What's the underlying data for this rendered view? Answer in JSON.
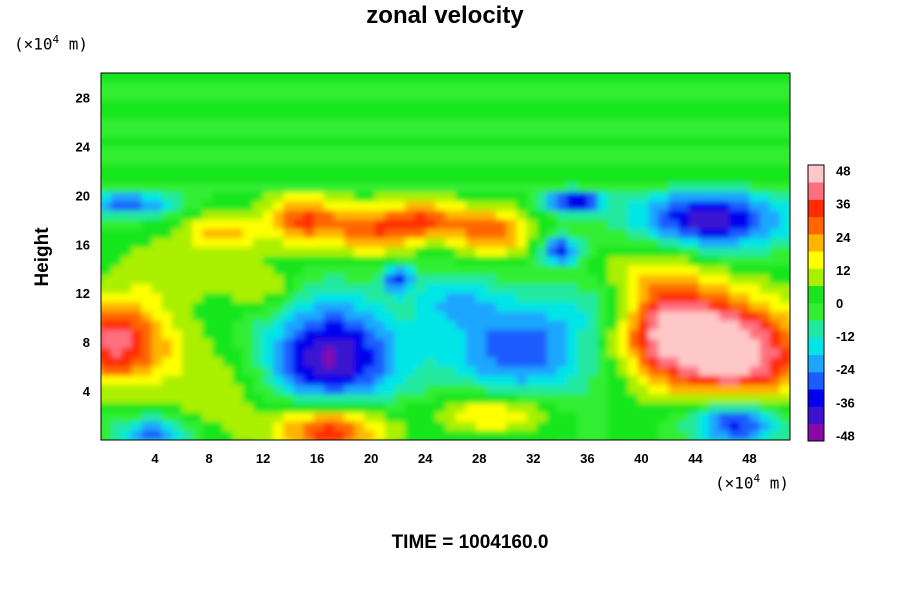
{
  "title": "zonal velocity",
  "footer": "TIME = 1004160.0",
  "chart_data": {
    "type": "heatmap",
    "title": "zonal velocity",
    "xlabel": "",
    "ylabel": "Height",
    "x_unit_label": "(×10",
    "x_unit_exp": "4",
    "x_unit_suffix": " m)",
    "y_unit_label": "(×10",
    "y_unit_exp": "4",
    "y_unit_suffix": " m)",
    "xlim": [
      0,
      51
    ],
    "ylim": [
      0,
      30
    ],
    "x_ticks": [
      4,
      8,
      12,
      16,
      20,
      24,
      28,
      32,
      36,
      40,
      44,
      48
    ],
    "y_ticks": [
      4,
      8,
      12,
      16,
      20,
      24,
      28
    ],
    "colorbar": {
      "range": [
        -50,
        50
      ],
      "ticks": [
        48,
        36,
        24,
        12,
        0,
        -12,
        -24,
        -36,
        -48
      ],
      "colors": [
        "#8a0aa8",
        "#3a12d0",
        "#0000ee",
        "#1a5cff",
        "#1ea6ff",
        "#00e6e6",
        "#20e8a0",
        "#33ee33",
        "#19e61e",
        "#aaf000",
        "#ffff00",
        "#ffb400",
        "#ff6600",
        "#ff2a00",
        "#ff6f7f",
        "#ffc8c8"
      ]
    },
    "features": [
      {
        "x": 17,
        "y": 6.5,
        "value": -45,
        "sx": 3.5,
        "sy": 3.5
      },
      {
        "x": 31,
        "y": 7.5,
        "value": -30,
        "sx": 4,
        "sy": 3
      },
      {
        "x": 47,
        "y": 7,
        "value": 48,
        "sx": 4,
        "sy": 3.2
      },
      {
        "x": 42,
        "y": 9,
        "value": 35,
        "sx": 3,
        "sy": 2.5
      },
      {
        "x": 1,
        "y": 8,
        "value": 40,
        "sx": 3,
        "sy": 2.5
      },
      {
        "x": 17,
        "y": 1,
        "value": 45,
        "sx": 3,
        "sy": 1.8
      },
      {
        "x": 29,
        "y": 2.2,
        "value": 24,
        "sx": 3,
        "sy": 1.2
      },
      {
        "x": 47,
        "y": 1.5,
        "value": -42,
        "sx": 2.5,
        "sy": 1.5
      },
      {
        "x": 4,
        "y": 0.5,
        "value": -28,
        "sx": 2,
        "sy": 1
      },
      {
        "x": 9,
        "y": 4,
        "value": 12,
        "sx": 3,
        "sy": 3
      },
      {
        "x": 45,
        "y": 18,
        "value": -42,
        "sx": 4,
        "sy": 1.8
      },
      {
        "x": 35,
        "y": 19.5,
        "value": -40,
        "sx": 1.5,
        "sy": 0.7
      },
      {
        "x": 34,
        "y": 15.5,
        "value": -35,
        "sx": 1,
        "sy": 0.8
      },
      {
        "x": 22,
        "y": 13.2,
        "value": -32,
        "sx": 0.8,
        "sy": 0.8
      },
      {
        "x": 2,
        "y": 19.3,
        "value": -30,
        "sx": 2.5,
        "sy": 0.7
      },
      {
        "x": 15,
        "y": 18,
        "value": 32,
        "sx": 2,
        "sy": 1.5
      },
      {
        "x": 20,
        "y": 17,
        "value": 28,
        "sx": 2,
        "sy": 1.5
      },
      {
        "x": 24,
        "y": 18,
        "value": 30,
        "sx": 2,
        "sy": 1.2
      },
      {
        "x": 29,
        "y": 17,
        "value": 30,
        "sx": 2,
        "sy": 1.4
      },
      {
        "x": 9,
        "y": 17,
        "value": 20,
        "sx": 2,
        "sy": 1.2
      },
      {
        "x": 5,
        "y": 14,
        "value": 10,
        "sx": 3,
        "sy": 2
      },
      {
        "x": 12,
        "y": 12.5,
        "value": 14,
        "sx": 2,
        "sy": 1.5
      },
      {
        "x": 41,
        "y": 14,
        "value": 14,
        "sx": 3,
        "sy": 2
      },
      {
        "x": 26,
        "y": 11.5,
        "value": -15,
        "sx": 2,
        "sy": 1.5
      },
      {
        "x": 37,
        "y": 11,
        "value": -10,
        "sx": 2,
        "sy": 1.5
      }
    ]
  }
}
